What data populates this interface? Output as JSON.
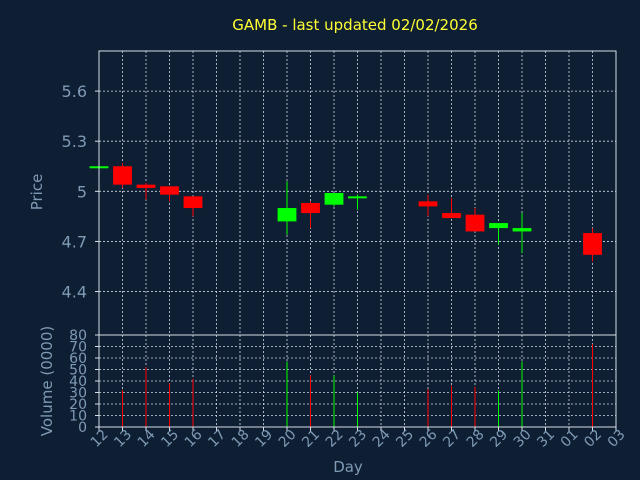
{
  "chart_data": [
    {
      "type": "candlestick",
      "title": "GAMB - last updated 02/02/2026",
      "ylabel": "Price",
      "ylim": [
        4.14,
        5.84
      ],
      "yticks": [
        4.4,
        4.7,
        5,
        5.3,
        5.6
      ],
      "ytick_labels": [
        "4.4",
        "4.7",
        "5",
        "5.3",
        "5.6"
      ],
      "grid": true,
      "up_color": "#00ff00",
      "down_color": "#ff0000",
      "candles": [
        {
          "day": "12",
          "open": 5.14,
          "high": 5.15,
          "low": 5.14,
          "close": 5.15
        },
        {
          "day": "13",
          "open": 5.15,
          "high": 5.17,
          "low": 5.02,
          "close": 5.04
        },
        {
          "day": "14",
          "open": 5.04,
          "high": 5.05,
          "low": 4.95,
          "close": 5.02
        },
        {
          "day": "15",
          "open": 5.03,
          "high": 5.03,
          "low": 4.94,
          "close": 4.98
        },
        {
          "day": "16",
          "open": 4.97,
          "high": 4.97,
          "low": 4.85,
          "close": 4.9
        },
        {
          "day": "20",
          "open": 4.82,
          "high": 5.06,
          "low": 4.74,
          "close": 4.9
        },
        {
          "day": "21",
          "open": 4.93,
          "high": 4.94,
          "low": 4.78,
          "close": 4.87
        },
        {
          "day": "22",
          "open": 4.92,
          "high": 4.99,
          "low": 4.91,
          "close": 4.99
        },
        {
          "day": "23",
          "open": 4.96,
          "high": 4.98,
          "low": 4.89,
          "close": 4.97
        },
        {
          "day": "26",
          "open": 4.94,
          "high": 4.98,
          "low": 4.85,
          "close": 4.91
        },
        {
          "day": "27",
          "open": 4.87,
          "high": 4.96,
          "low": 4.84,
          "close": 4.84
        },
        {
          "day": "28",
          "open": 4.86,
          "high": 4.9,
          "low": 4.76,
          "close": 4.76
        },
        {
          "day": "29",
          "open": 4.78,
          "high": 4.81,
          "low": 4.68,
          "close": 4.81
        },
        {
          "day": "30",
          "open": 4.76,
          "high": 4.87,
          "low": 4.63,
          "close": 4.78
        },
        {
          "day": "02",
          "open": 4.75,
          "high": 4.78,
          "low": 4.58,
          "close": 4.62
        }
      ]
    },
    {
      "type": "bar",
      "ylabel": "Volume (0000)",
      "xlabel": "Day",
      "ylim": [
        0,
        80
      ],
      "yticks": [
        0,
        10,
        20,
        30,
        40,
        50,
        60,
        70,
        80
      ],
      "ytick_labels": [
        "0",
        "10",
        "20",
        "30",
        "40",
        "50",
        "60",
        "70",
        "80"
      ],
      "grid": true,
      "categories": [
        "12",
        "13",
        "14",
        "15",
        "16",
        "17",
        "18",
        "19",
        "20",
        "21",
        "22",
        "23",
        "24",
        "25",
        "26",
        "27",
        "28",
        "29",
        "30",
        "31",
        "01",
        "02",
        "03"
      ],
      "values": [
        null,
        32,
        52,
        38,
        42,
        null,
        null,
        null,
        57,
        45,
        45,
        30,
        null,
        null,
        33,
        36,
        35,
        32,
        57,
        null,
        null,
        72,
        null
      ],
      "colors": [
        "",
        "down",
        "down",
        "down",
        "down",
        "",
        "",
        "",
        "up",
        "down",
        "up",
        "up",
        "",
        "",
        "down",
        "down",
        "down",
        "up",
        "up",
        "",
        "",
        "down",
        ""
      ]
    }
  ]
}
